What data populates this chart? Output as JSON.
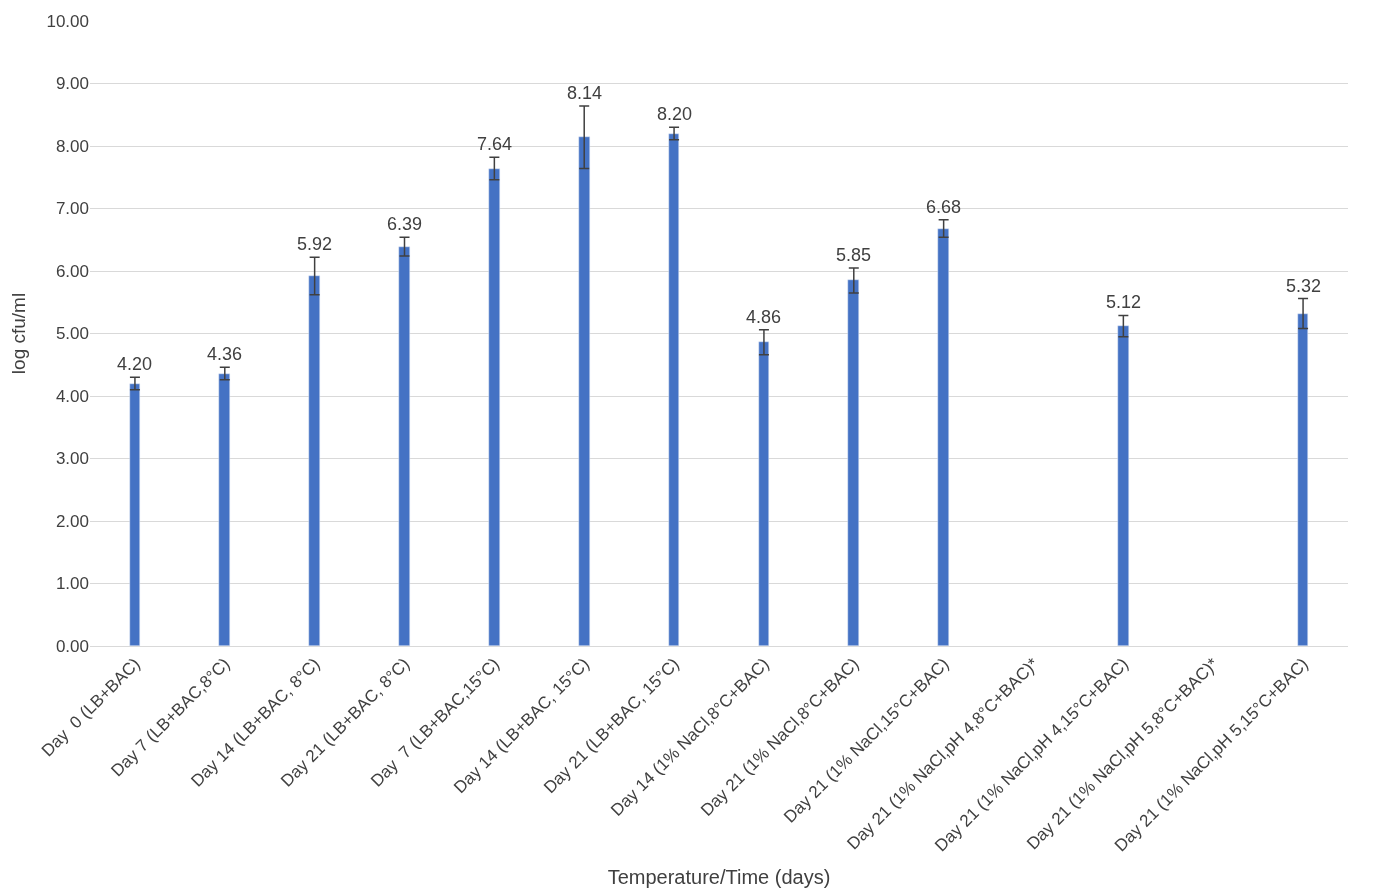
{
  "chart_data": {
    "type": "bar",
    "xlabel": "Temperature/Time (days)",
    "ylabel": "log cfu/ml",
    "categories": [
      "Day  0 (LB+BAC)",
      "Day 7 (LB+BAC,8°C)",
      "Day 14 (LB+BAC, 8°C)",
      "Day 21 (LB+BAC, 8°C)",
      "Day  7 (LB+BAC,15°C)",
      "Day 14 (LB+BAC, 15°C)",
      "Day 21 (LB+BAC, 15°C)",
      "Day 14 (1% NaCl,8°C+BAC)",
      "Day 21 (1% NaCl,8°C+BAC)",
      "Day 21 (1% NaCl,15°C+BAC)",
      "Day 21 (1% NaCl,pH 4,8°C+BAC)*",
      "Day 21 (1% NaCl,pH 4,15°C+BAC)",
      "Day 21 (1% NaCl,pH 5,8°C+BAC)*",
      "Day 21 (1% NaCl,pH 5,15°C+BAC)"
    ],
    "values": [
      4.2,
      4.36,
      5.92,
      6.39,
      7.64,
      8.14,
      8.2,
      4.86,
      5.85,
      6.68,
      null,
      5.12,
      null,
      5.32
    ],
    "errors": [
      0.1,
      0.1,
      0.3,
      0.15,
      0.18,
      0.5,
      0.1,
      0.2,
      0.2,
      0.14,
      null,
      0.17,
      null,
      0.24
    ],
    "value_labels": [
      "4.20",
      "4.36",
      "5.92",
      "6.39",
      "7.64",
      "8.14",
      "8.20",
      "4.86",
      "5.85",
      "6.68",
      null,
      "5.12",
      null,
      "5.32"
    ],
    "color": "#4472c4",
    "ylim": [
      0,
      10
    ],
    "yticks": [
      {
        "value": 0,
        "label": "0.00"
      },
      {
        "value": 1,
        "label": "1.00"
      },
      {
        "value": 2,
        "label": "2.00"
      },
      {
        "value": 3,
        "label": "3.00"
      },
      {
        "value": 4,
        "label": "4.00"
      },
      {
        "value": 5,
        "label": "5.00"
      },
      {
        "value": 6,
        "label": "6.00"
      },
      {
        "value": 7,
        "label": "7.00"
      },
      {
        "value": 8,
        "label": "8.00"
      },
      {
        "value": 9,
        "label": "9.00"
      },
      {
        "value": 10,
        "label": "10.00"
      }
    ],
    "grid": "y",
    "legend": false
  }
}
